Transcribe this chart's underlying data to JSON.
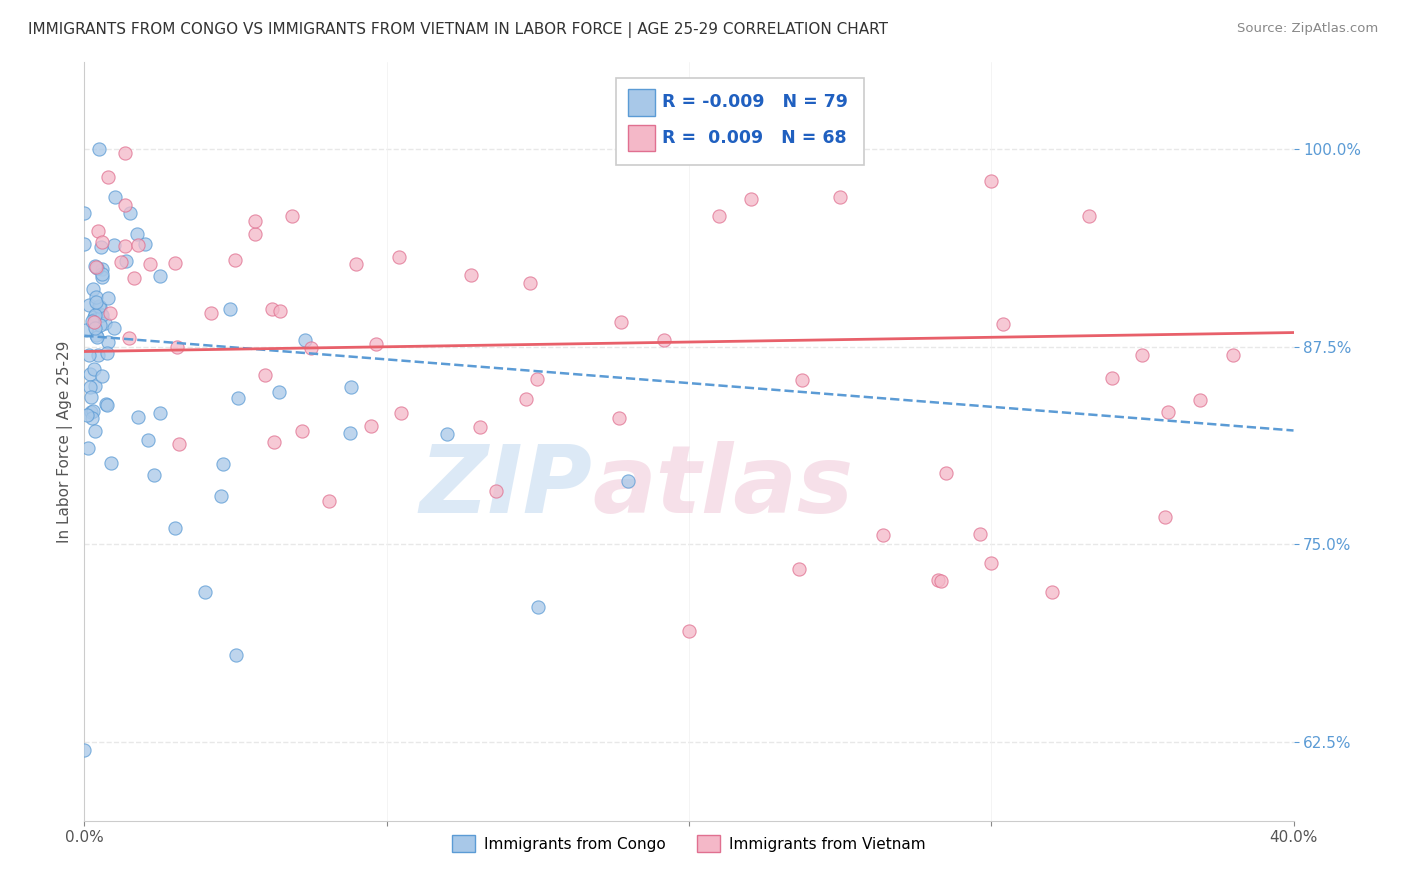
{
  "title": "IMMIGRANTS FROM CONGO VS IMMIGRANTS FROM VIETNAM IN LABOR FORCE | AGE 25-29 CORRELATION CHART",
  "source": "Source: ZipAtlas.com",
  "ylabel": "In Labor Force | Age 25-29",
  "xmin": 0.0,
  "xmax": 0.4,
  "ymin": 0.575,
  "ymax": 1.055,
  "yticks": [
    0.625,
    0.75,
    0.875,
    1.0
  ],
  "ytick_labels": [
    "62.5%",
    "75.0%",
    "87.5%",
    "100.0%"
  ],
  "xtick_labels": [
    "0.0%",
    "",
    "",
    "",
    "40.0%"
  ],
  "congo_color": "#a8c8e8",
  "vietnam_color": "#f4b8c8",
  "congo_edge": "#5b9bd5",
  "vietnam_edge": "#e07090",
  "trend_congo_color": "#5b9bd5",
  "trend_vietnam_color": "#e8606a",
  "legend_R_congo": "-0.009",
  "legend_N_congo": "79",
  "legend_R_vietnam": "0.009",
  "legend_N_vietnam": "68",
  "background_color": "#ffffff",
  "grid_color": "#e8e8e8",
  "axis_color": "#5b9bd5",
  "watermark_color": "#c0d8f0",
  "watermark_color2": "#f0c8d8"
}
